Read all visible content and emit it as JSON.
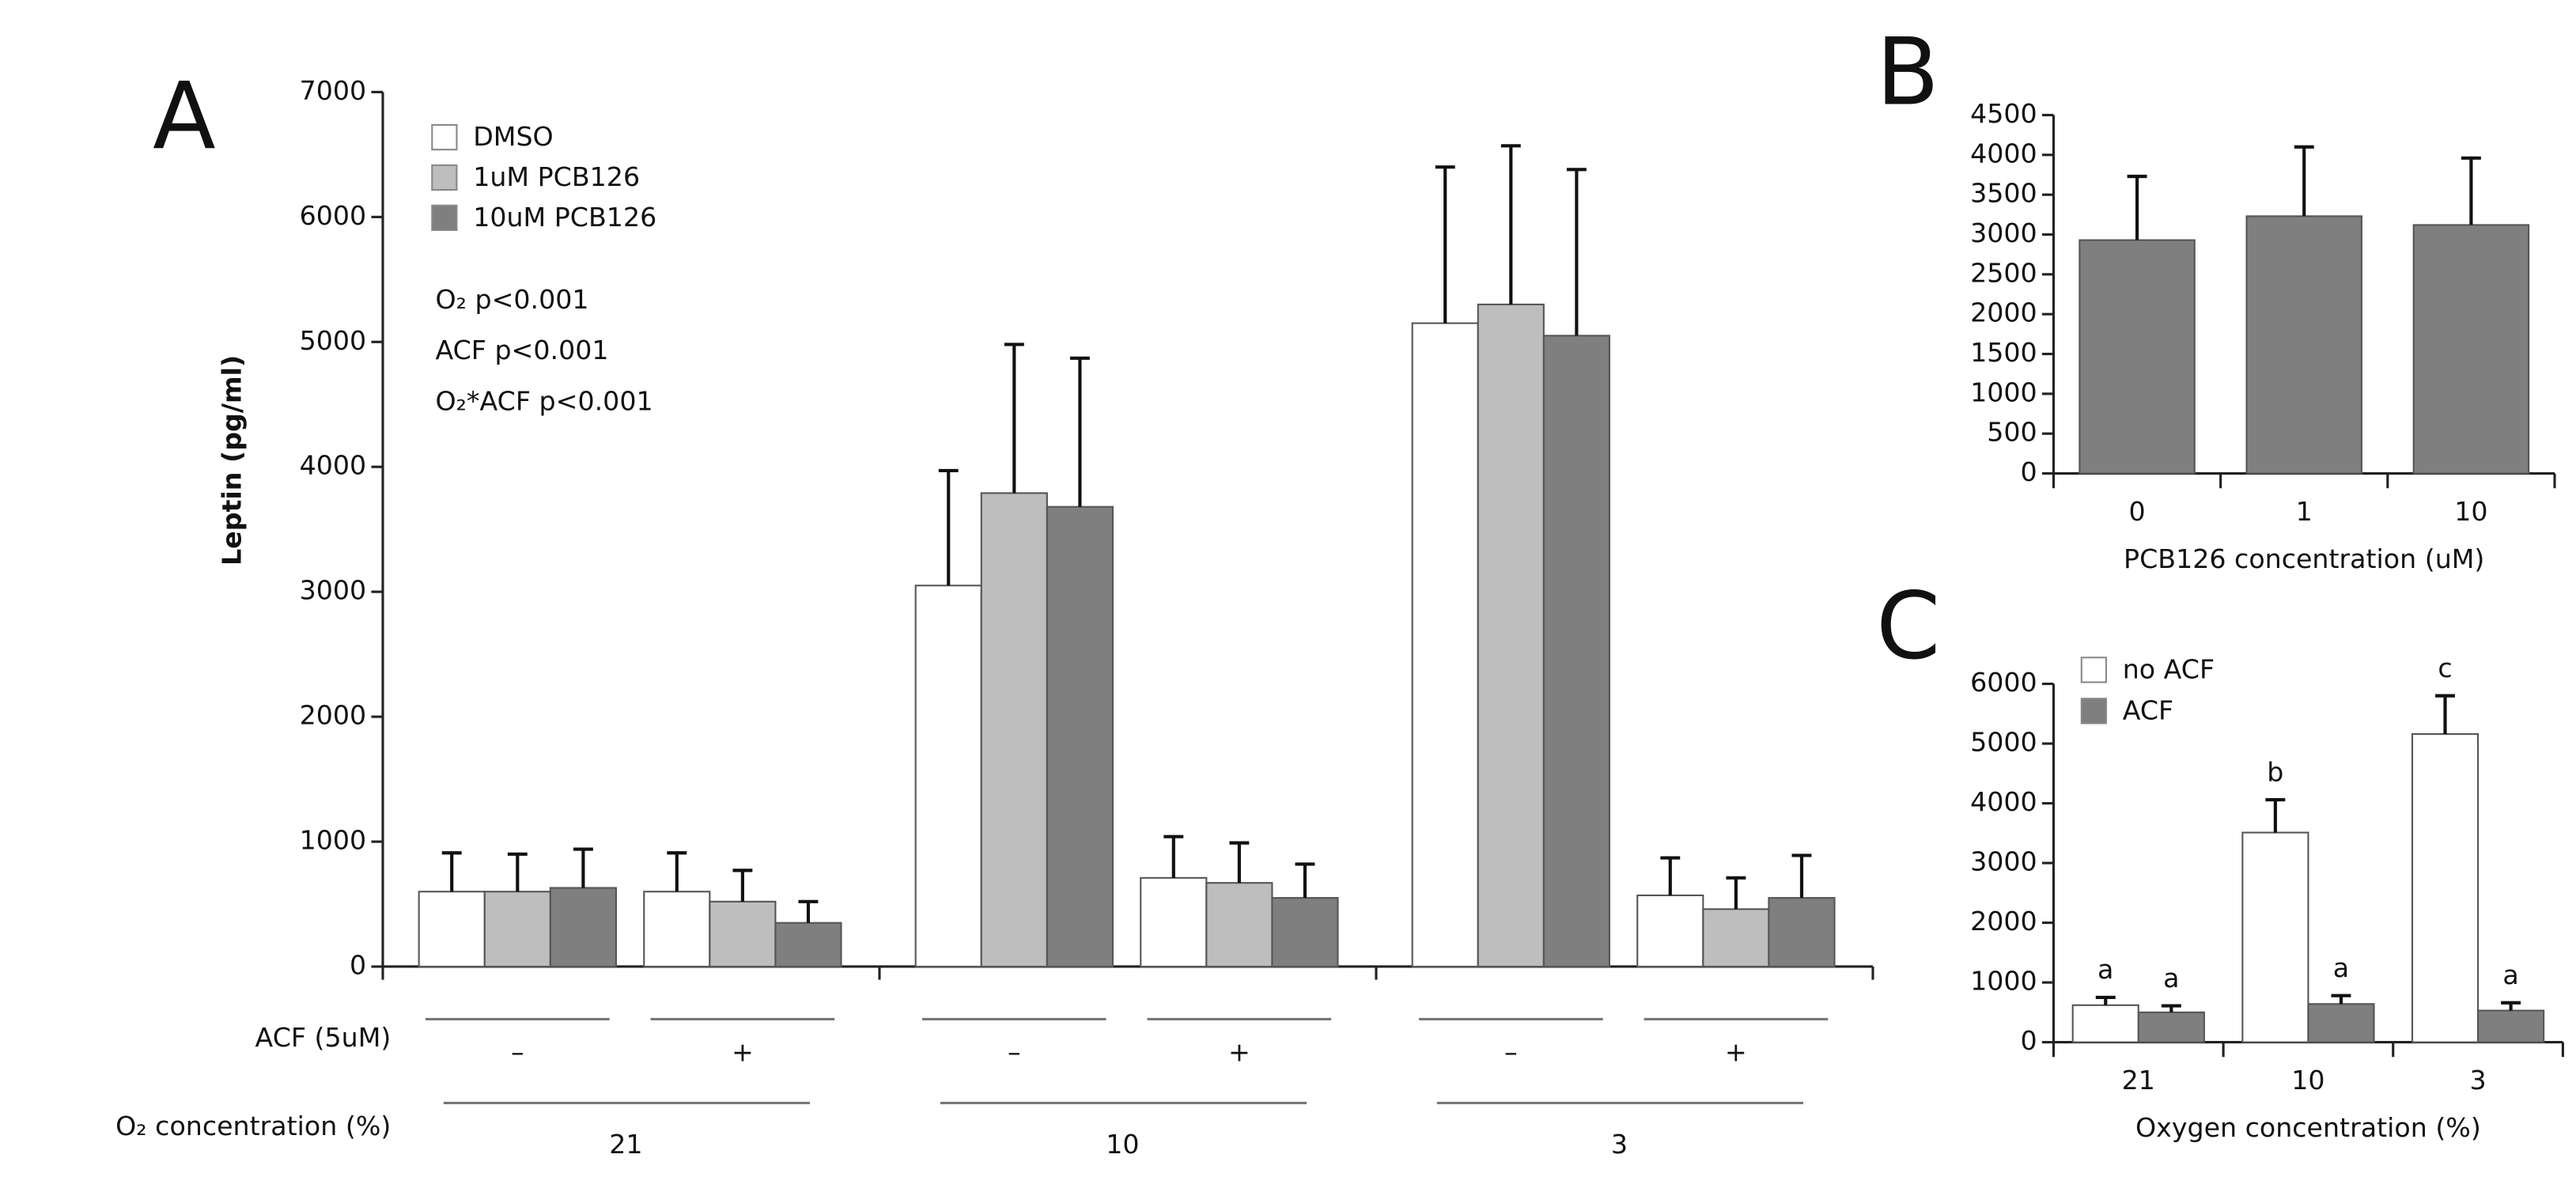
{
  "chart_data": [
    {
      "type": "bar",
      "panel": "A",
      "ylabel": "Leptin (pg/ml)",
      "xlabel": "ACF (5uM)",
      "group_label": "O₂ concentration (%)",
      "categories": [
        "–",
        "+",
        "–",
        "+",
        "–",
        "+"
      ],
      "groups": [
        "21",
        "10",
        "3"
      ],
      "series": [
        {
          "name": "DMSO",
          "color": "#ffffff",
          "values": [
            600,
            600,
            3050,
            710,
            5150,
            570
          ],
          "errors": [
            310,
            310,
            920,
            330,
            1250,
            300
          ]
        },
        {
          "name": "1uM PCB126",
          "color": "#bebebe",
          "values": [
            600,
            520,
            3790,
            670,
            5300,
            460
          ],
          "errors": [
            300,
            250,
            1190,
            320,
            1270,
            250
          ]
        },
        {
          "name": "10uM PCB126",
          "color": "#7f7f7f",
          "values": [
            630,
            350,
            3680,
            550,
            5050,
            550
          ],
          "errors": [
            310,
            170,
            1190,
            270,
            1330,
            340
          ]
        }
      ],
      "annotations": [
        "O₂ p<0.001",
        "ACF p<0.001",
        "O₂*ACF p<0.001"
      ],
      "ylim": [
        0,
        7000
      ],
      "yticks": [
        0,
        1000,
        2000,
        3000,
        4000,
        5000,
        6000,
        7000
      ]
    },
    {
      "type": "bar",
      "panel": "B",
      "xlabel": "PCB126 concentration (uM)",
      "categories": [
        "0",
        "1",
        "10"
      ],
      "values": [
        2930,
        3230,
        3120
      ],
      "errors": [
        800,
        870,
        840
      ],
      "color": "#7f7f7f",
      "ylim": [
        0,
        4500
      ],
      "yticks": [
        0,
        500,
        1000,
        1500,
        2000,
        2500,
        3000,
        3500,
        4000,
        4500
      ]
    },
    {
      "type": "bar",
      "panel": "C",
      "xlabel": "Oxygen concentration (%)",
      "categories": [
        "21",
        "10",
        "3"
      ],
      "series": [
        {
          "name": "no ACF",
          "color": "#ffffff",
          "values": [
            620,
            3510,
            5160
          ],
          "errors": [
            130,
            550,
            640
          ],
          "letters": [
            "a",
            "b",
            "c"
          ]
        },
        {
          "name": "ACF",
          "color": "#7f7f7f",
          "values": [
            500,
            640,
            530
          ],
          "errors": [
            110,
            140,
            130
          ],
          "letters": [
            "a",
            "a",
            "a"
          ]
        }
      ],
      "ylim": [
        0,
        6000
      ],
      "yticks": [
        0,
        1000,
        2000,
        3000,
        4000,
        5000,
        6000
      ]
    }
  ]
}
